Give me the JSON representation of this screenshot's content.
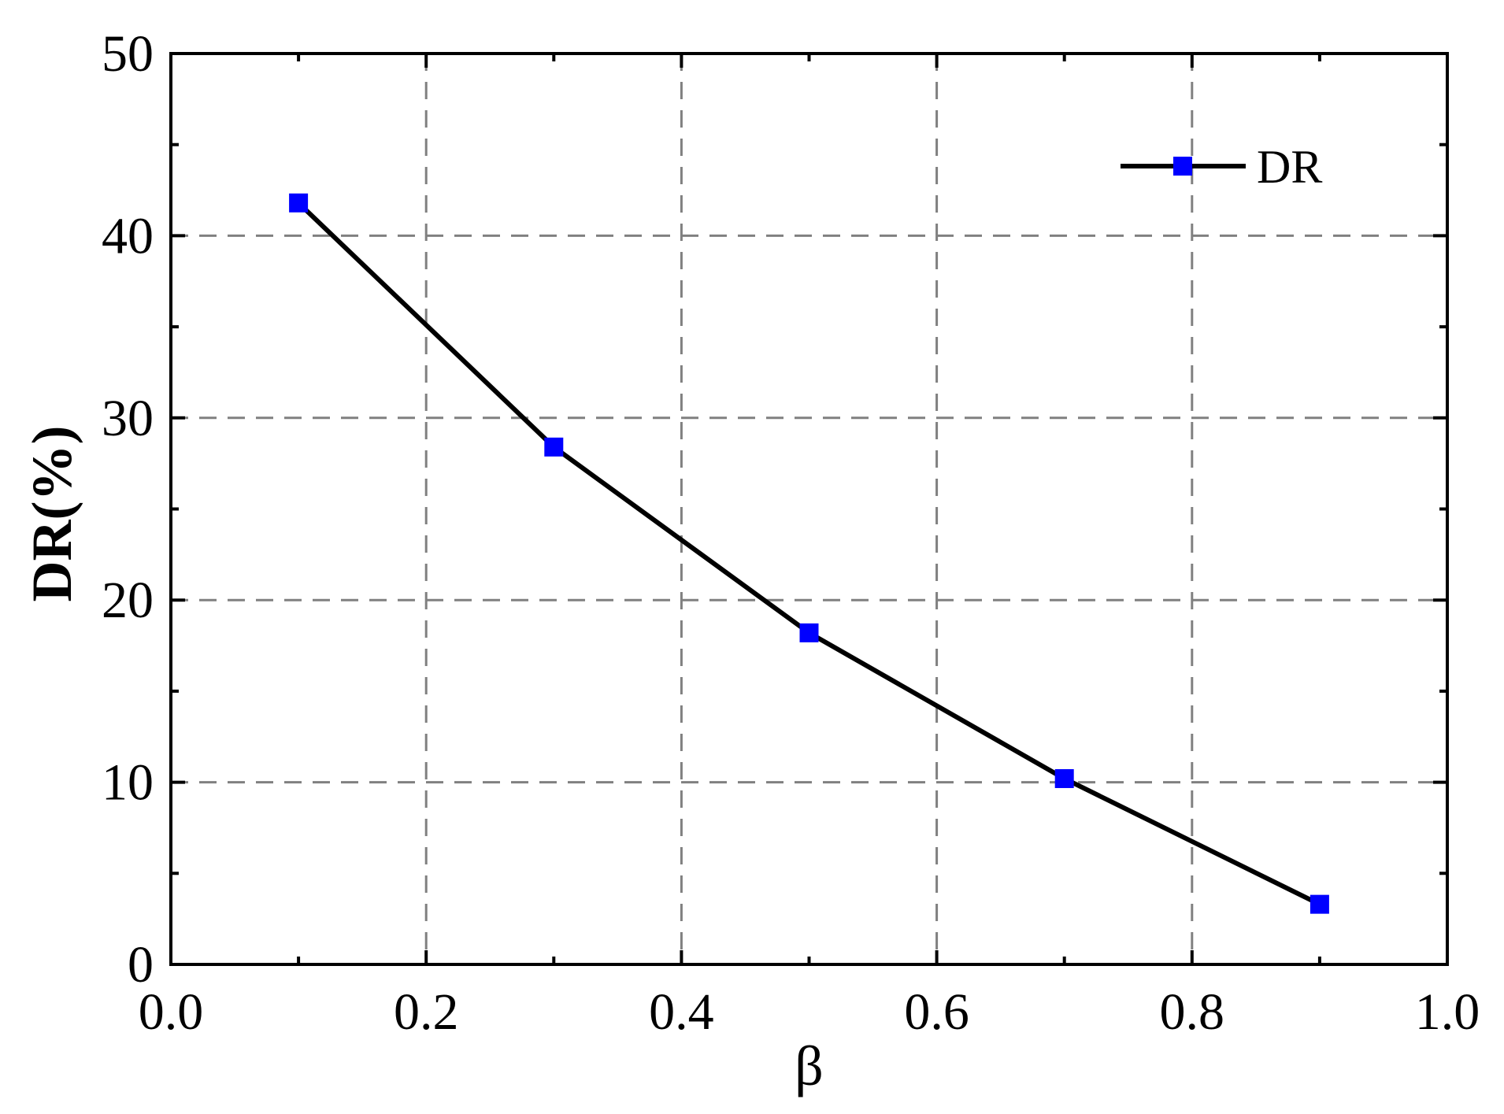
{
  "chart_data": {
    "type": "line",
    "title": "",
    "xlabel": "β",
    "ylabel": "DR(%)",
    "xlim": [
      0.0,
      1.0
    ],
    "ylim": [
      0,
      50
    ],
    "xticks": [
      0.0,
      0.2,
      0.4,
      0.6,
      0.8,
      1.0
    ],
    "xtick_labels": [
      "0.0",
      "0.2",
      "0.4",
      "0.6",
      "0.8",
      "1.0"
    ],
    "yticks": [
      0,
      10,
      20,
      30,
      40,
      50
    ],
    "ytick_labels": [
      "0",
      "10",
      "20",
      "30",
      "40",
      "50"
    ],
    "grid": true,
    "legend_position": "top-right",
    "series": [
      {
        "name": "DR",
        "x": [
          0.1,
          0.3,
          0.5,
          0.7,
          0.9
        ],
        "y": [
          41.8,
          28.4,
          18.2,
          10.2,
          3.3
        ],
        "line_color": "#000000",
        "marker": "square",
        "marker_color": "#0000ff"
      }
    ]
  }
}
